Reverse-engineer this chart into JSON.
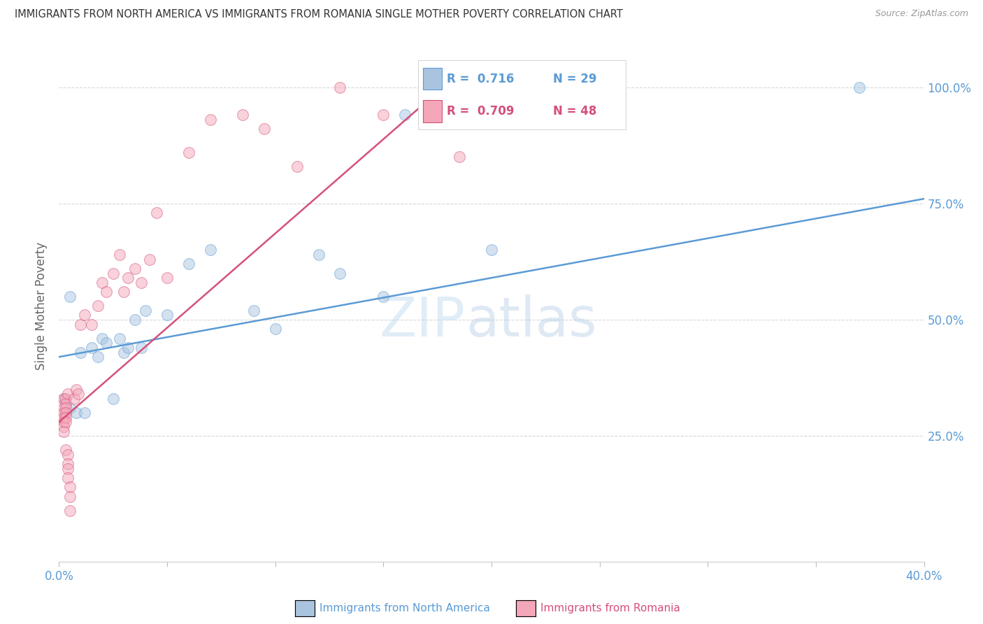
{
  "title": "IMMIGRANTS FROM NORTH AMERICA VS IMMIGRANTS FROM ROMANIA SINGLE MOTHER POVERTY CORRELATION CHART",
  "source": "Source: ZipAtlas.com",
  "ylabel": "Single Mother Poverty",
  "ytick_labels": [
    "25.0%",
    "50.0%",
    "75.0%",
    "100.0%"
  ],
  "ytick_values": [
    0.25,
    0.5,
    0.75,
    1.0
  ],
  "xmin": 0.0,
  "xmax": 0.4,
  "ymin": -0.02,
  "ymax": 1.08,
  "legend_blue_r": "R =  0.716",
  "legend_blue_n": "N = 29",
  "legend_pink_r": "R =  0.709",
  "legend_pink_n": "N = 48",
  "legend_blue_label": "Immigrants from North America",
  "legend_pink_label": "Immigrants from Romania",
  "blue_color": "#aac4e0",
  "blue_line_color": "#5b9bd5",
  "pink_color": "#f4a7b9",
  "pink_line_color": "#d4507a",
  "blue_scatter_x": [
    0.002,
    0.005,
    0.008,
    0.01,
    0.012,
    0.015,
    0.018,
    0.02,
    0.022,
    0.025,
    0.028,
    0.03,
    0.032,
    0.035,
    0.038,
    0.04,
    0.05,
    0.06,
    0.07,
    0.09,
    0.1,
    0.12,
    0.13,
    0.15,
    0.16,
    0.17,
    0.2,
    0.37,
    0.005
  ],
  "blue_scatter_y": [
    0.33,
    0.31,
    0.3,
    0.43,
    0.3,
    0.44,
    0.42,
    0.46,
    0.45,
    0.33,
    0.46,
    0.43,
    0.44,
    0.5,
    0.44,
    0.52,
    0.51,
    0.62,
    0.65,
    0.52,
    0.48,
    0.64,
    0.6,
    0.55,
    0.94,
    0.94,
    0.65,
    1.0,
    0.55
  ],
  "pink_scatter_x": [
    0.002,
    0.002,
    0.002,
    0.002,
    0.002,
    0.002,
    0.002,
    0.003,
    0.003,
    0.003,
    0.003,
    0.003,
    0.003,
    0.003,
    0.004,
    0.004,
    0.004,
    0.004,
    0.004,
    0.005,
    0.005,
    0.005,
    0.007,
    0.008,
    0.009,
    0.01,
    0.012,
    0.015,
    0.018,
    0.02,
    0.022,
    0.025,
    0.028,
    0.03,
    0.032,
    0.035,
    0.038,
    0.042,
    0.045,
    0.05,
    0.06,
    0.07,
    0.085,
    0.095,
    0.11,
    0.13,
    0.15,
    0.185
  ],
  "pink_scatter_y": [
    0.33,
    0.31,
    0.3,
    0.29,
    0.28,
    0.27,
    0.26,
    0.33,
    0.32,
    0.31,
    0.3,
    0.29,
    0.28,
    0.22,
    0.34,
    0.21,
    0.19,
    0.18,
    0.16,
    0.14,
    0.12,
    0.09,
    0.33,
    0.35,
    0.34,
    0.49,
    0.51,
    0.49,
    0.53,
    0.58,
    0.56,
    0.6,
    0.64,
    0.56,
    0.59,
    0.61,
    0.58,
    0.63,
    0.73,
    0.59,
    0.86,
    0.93,
    0.94,
    0.91,
    0.83,
    1.0,
    0.94,
    0.85
  ],
  "blue_trendline_x": [
    0.0,
    0.4
  ],
  "blue_trendline_y": [
    0.42,
    0.76
  ],
  "pink_trendline_x": [
    0.0,
    0.185
  ],
  "pink_trendline_y": [
    0.28,
    1.03
  ],
  "watermark_zip": "ZIP",
  "watermark_atlas": "atlas",
  "background_color": "#ffffff",
  "grid_color": "#d8d8d8",
  "title_color": "#333333",
  "axis_label_color": "#5b9bd5",
  "scatter_size": 130,
  "scatter_alpha": 0.5
}
